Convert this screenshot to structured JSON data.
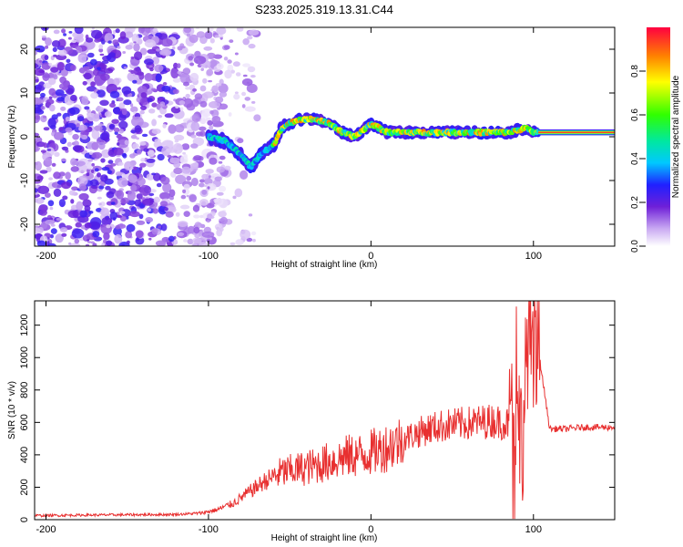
{
  "chart_data": [
    {
      "type": "heatmap",
      "title": "S233.2025.319.13.31.C44",
      "xlabel": "Height of straight line (km)",
      "ylabel": "Frequency (Hz)",
      "xlim": [
        -207,
        150
      ],
      "ylim": [
        -25,
        25
      ],
      "xticks": [
        -200,
        -100,
        0,
        100
      ],
      "yticks": [
        -20,
        -10,
        0,
        10,
        20
      ],
      "colorbar": {
        "label": "Normalized spectral amplitude",
        "range": [
          0,
          1
        ],
        "ticks": [
          0.0,
          0.2,
          0.4,
          0.6,
          0.8
        ]
      },
      "noise_region_km": [
        -207,
        -90
      ],
      "ridge_frequency_hz": [
        {
          "km": -100,
          "hz": 0
        },
        {
          "km": -90,
          "hz": -1
        },
        {
          "km": -80,
          "hz": -4
        },
        {
          "km": -74,
          "hz": -7
        },
        {
          "km": -68,
          "hz": -4
        },
        {
          "km": -60,
          "hz": -2
        },
        {
          "km": -55,
          "hz": 2
        },
        {
          "km": -45,
          "hz": 4
        },
        {
          "km": -35,
          "hz": 4
        },
        {
          "km": -25,
          "hz": 3
        },
        {
          "km": -18,
          "hz": 1
        },
        {
          "km": -10,
          "hz": 0
        },
        {
          "km": 0,
          "hz": 3
        },
        {
          "km": 10,
          "hz": 1
        },
        {
          "km": 30,
          "hz": 1
        },
        {
          "km": 50,
          "hz": 1
        },
        {
          "km": 70,
          "hz": 1
        },
        {
          "km": 85,
          "hz": 1
        },
        {
          "km": 95,
          "hz": 2
        },
        {
          "km": 100,
          "hz": 1
        },
        {
          "km": 150,
          "hz": 1
        }
      ]
    },
    {
      "type": "line",
      "xlabel": "Height of straight line (km)",
      "ylabel": "SNR (10 * v/v)",
      "xlim": [
        -207,
        150
      ],
      "ylim": [
        0,
        1350
      ],
      "xticks": [
        -200,
        -100,
        0,
        100
      ],
      "yticks": [
        0,
        200,
        400,
        600,
        800,
        1000,
        1200
      ],
      "series": [
        {
          "name": "SNR",
          "color": "#e83030",
          "x": [
            -207,
            -180,
            -150,
            -120,
            -105,
            -95,
            -85,
            -75,
            -65,
            -55,
            -45,
            -35,
            -25,
            -15,
            -5,
            5,
            15,
            25,
            35,
            45,
            55,
            65,
            75,
            85,
            90,
            93,
            97,
            100,
            103,
            110,
            120,
            130,
            140,
            150
          ],
          "y": [
            25,
            28,
            30,
            32,
            40,
            60,
            100,
            170,
            240,
            290,
            310,
            330,
            360,
            390,
            400,
            430,
            470,
            520,
            560,
            580,
            590,
            600,
            610,
            590,
            650,
            480,
            1200,
            850,
            1050,
            560,
            560,
            570,
            570,
            570
          ]
        }
      ]
    }
  ]
}
